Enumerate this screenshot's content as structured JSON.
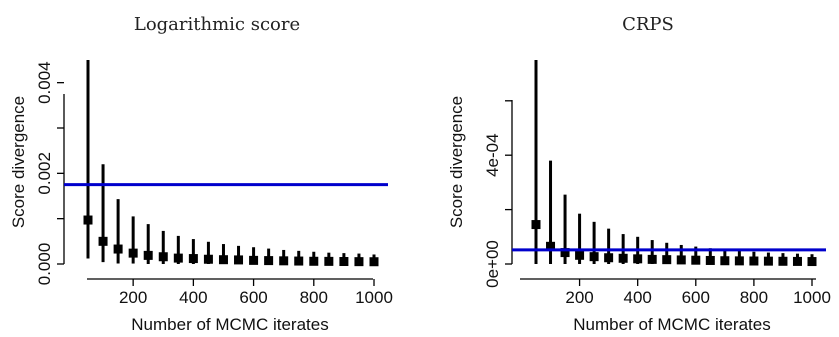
{
  "chart_data": [
    {
      "type": "scatter",
      "title": "Logarithmic score",
      "xlabel": "Number of MCMC iterates",
      "ylabel": "Score divergence",
      "xlim": [
        50,
        1000
      ],
      "ylim": [
        0,
        0.0045
      ],
      "x_ticks": [
        200,
        400,
        600,
        800,
        1000
      ],
      "y_ticks": [
        0,
        0.001,
        0.002,
        0.003,
        0.004
      ],
      "y_tick_labels": [
        "0.000",
        "",
        "0.002",
        "",
        "0.004"
      ],
      "x_tick_labels": [
        "200",
        "400",
        "600",
        "800",
        "1000"
      ],
      "reference_line": {
        "y": 0.00175,
        "color": "#0000cc"
      },
      "point_color": "#000000",
      "series": [
        {
          "x": [
            50,
            100,
            150,
            200,
            250,
            300,
            350,
            400,
            450,
            500,
            550,
            600,
            650,
            700,
            750,
            800,
            850,
            900,
            950,
            1000
          ],
          "y": [
            0.00097,
            0.0005,
            0.00033,
            0.00024,
            0.00019,
            0.00016,
            0.00013,
            0.00012,
            0.000105,
            9.5e-05,
            9e-05,
            8e-05,
            7.5e-05,
            7e-05,
            6.5e-05,
            6e-05,
            5.8e-05,
            5.5e-05,
            5.2e-05,
            5e-05
          ],
          "low": [
            0.00012,
            4e-05,
            1e-05,
            1e-05,
            0.0,
            0.0,
            0.0,
            0.0,
            0.0,
            0.0,
            0.0,
            0.0,
            0.0,
            0.0,
            0.0,
            0.0,
            0.0,
            0.0,
            0.0,
            0.0
          ],
          "high": [
            0.0045,
            0.0022,
            0.00143,
            0.00105,
            0.00088,
            0.00073,
            0.00062,
            0.00055,
            0.00049,
            0.00044,
            0.0004,
            0.00037,
            0.00034,
            0.00031,
            0.00029,
            0.00027,
            0.00025,
            0.00024,
            0.00023,
            0.00021
          ]
        }
      ]
    },
    {
      "type": "scatter",
      "title": "CRPS",
      "xlabel": "Number of MCMC iterates",
      "ylabel": "Score divergence",
      "xlim": [
        50,
        1000
      ],
      "ylim": [
        0,
        0.00075
      ],
      "x_ticks": [
        200,
        400,
        600,
        800,
        1000
      ],
      "y_ticks": [
        0,
        0.0002,
        0.0004,
        0.0006
      ],
      "y_tick_labels": [
        "0e+00",
        "",
        "4e-04",
        ""
      ],
      "x_tick_labels": [
        "200",
        "400",
        "600",
        "800",
        "1000"
      ],
      "reference_line": {
        "y": 5.2e-05,
        "color": "#0000cc"
      },
      "point_color": "#000000",
      "series": [
        {
          "x": [
            50,
            100,
            150,
            200,
            250,
            300,
            350,
            400,
            450,
            500,
            550,
            600,
            650,
            700,
            750,
            800,
            850,
            900,
            950,
            1000
          ],
          "y": [
            0.000145,
            6.5e-05,
            4.2e-05,
            3.2e-05,
            2.7e-05,
            2.3e-05,
            2.1e-05,
            1.9e-05,
            1.7e-05,
            1.6e-05,
            1.5e-05,
            1.4e-05,
            1.3e-05,
            1.2e-05,
            1.15e-05,
            1.1e-05,
            1.05e-05,
            1e-05,
            9.5e-06,
            9e-06
          ],
          "low": [
            0.0,
            0.0,
            0.0,
            0.0,
            0.0,
            0.0,
            0.0,
            0.0,
            0.0,
            0.0,
            0.0,
            0.0,
            0.0,
            0.0,
            0.0,
            0.0,
            0.0,
            0.0,
            0.0,
            0.0
          ],
          "high": [
            0.00075,
            0.00038,
            0.000255,
            0.000185,
            0.000155,
            0.00013,
            0.00011,
            0.0001,
            8.8e-05,
            7.8e-05,
            7e-05,
            6.4e-05,
            5.8e-05,
            5.3e-05,
            4.9e-05,
            4.5e-05,
            4.2e-05,
            4e-05,
            3.8e-05,
            3.6e-05
          ]
        }
      ]
    }
  ]
}
